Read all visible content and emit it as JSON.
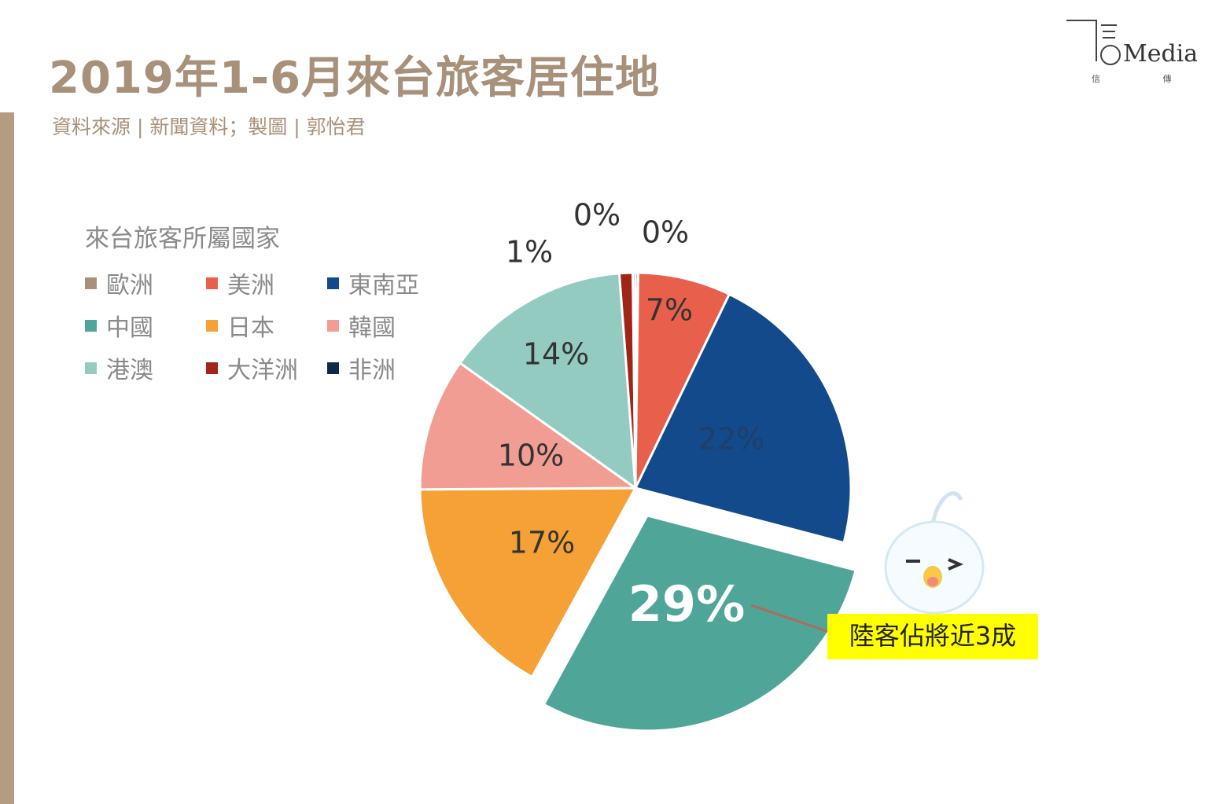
{
  "title": "2019年1-6月來台旅客居住地",
  "subtitle": "資料來源 | 新聞資料；製圖 | 郭怡君",
  "logo": {
    "text": "Media",
    "subtext": "信 傳 媒"
  },
  "chart_data": {
    "type": "pie",
    "legend_title": "來台旅客所屬國家",
    "legend_placement": "top-left",
    "legend": [
      {
        "name": "歐洲",
        "color": "#a8917a"
      },
      {
        "name": "美洲",
        "color": "#e8604c"
      },
      {
        "name": "東南亞",
        "color": "#124a8b"
      },
      {
        "name": "中國",
        "color": "#4fa598"
      },
      {
        "name": "日本",
        "color": "#f5a136"
      },
      {
        "name": "韓國",
        "color": "#f29d93"
      },
      {
        "name": "港澳",
        "color": "#93cbc0"
      },
      {
        "name": "大洋洲",
        "color": "#a02517"
      },
      {
        "name": "非洲",
        "color": "#0d2a4d"
      }
    ],
    "slices": [
      {
        "name": "歐洲",
        "label": "0%",
        "value": 0.2,
        "color": "#a8917a"
      },
      {
        "name": "美洲",
        "label": "7%",
        "value": 7,
        "color": "#e8604c"
      },
      {
        "name": "東南亞",
        "label": "22%",
        "value": 22,
        "color": "#124a8b"
      },
      {
        "name": "中國",
        "label": "29%",
        "value": 29,
        "color": "#4fa598",
        "exploded": true
      },
      {
        "name": "日本",
        "label": "17%",
        "value": 17,
        "color": "#f5a136"
      },
      {
        "name": "韓國",
        "label": "10%",
        "value": 10,
        "color": "#f29d93"
      },
      {
        "name": "港澳",
        "label": "14%",
        "value": 14,
        "color": "#93cbc0"
      },
      {
        "name": "大洋洲",
        "label": "1%",
        "value": 1,
        "color": "#a02517"
      },
      {
        "name": "非洲",
        "label": "0%",
        "value": 0.2,
        "color": "#0d2a4d"
      }
    ],
    "callout": {
      "text": "陸客佔將近3成",
      "target": "中國",
      "background": "#ffff00"
    }
  }
}
